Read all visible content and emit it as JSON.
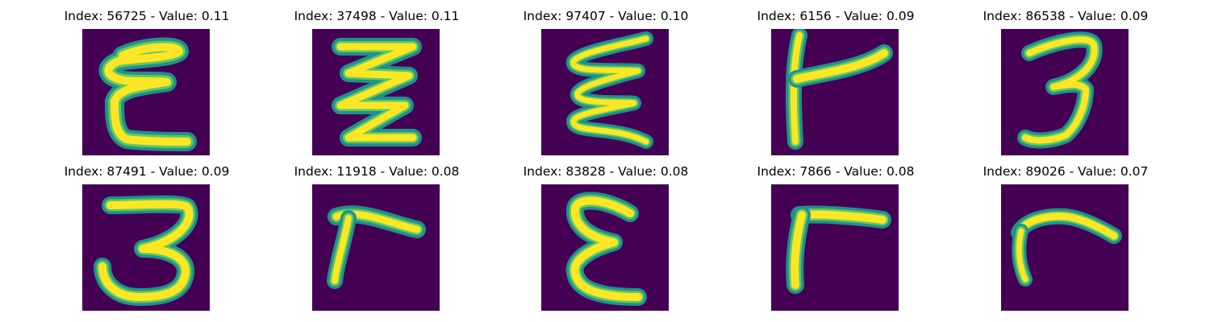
{
  "figure": {
    "colors": {
      "background": "#440154",
      "stroke_halo": "#21918c",
      "stroke_mid": "#5ec962",
      "stroke_core": "#fde725"
    },
    "panels": [
      {
        "title": "Index: 56725 - Value: 0.11",
        "glyph": "epsilon-shape"
      },
      {
        "title": "Index: 37498 - Value: 0.11",
        "glyph": "zigzag-shape"
      },
      {
        "title": "Index: 97407 - Value: 0.10",
        "glyph": "wave-zigzag-shape"
      },
      {
        "title": "Index: 6156 - Value: 0.09",
        "glyph": "bent-hook-shape"
      },
      {
        "title": "Index: 86538 - Value: 0.09",
        "glyph": "three-shape"
      },
      {
        "title": "Index: 87491 - Value: 0.09",
        "glyph": "three-shape"
      },
      {
        "title": "Index: 11918 - Value: 0.08",
        "glyph": "bent-hook-shape"
      },
      {
        "title": "Index: 83828 - Value: 0.08",
        "glyph": "epsilon-shape"
      },
      {
        "title": "Index: 7866 - Value: 0.08",
        "glyph": "bent-hook-shape"
      },
      {
        "title": "Index: 89026 - Value: 0.07",
        "glyph": "hook-shape"
      }
    ]
  }
}
